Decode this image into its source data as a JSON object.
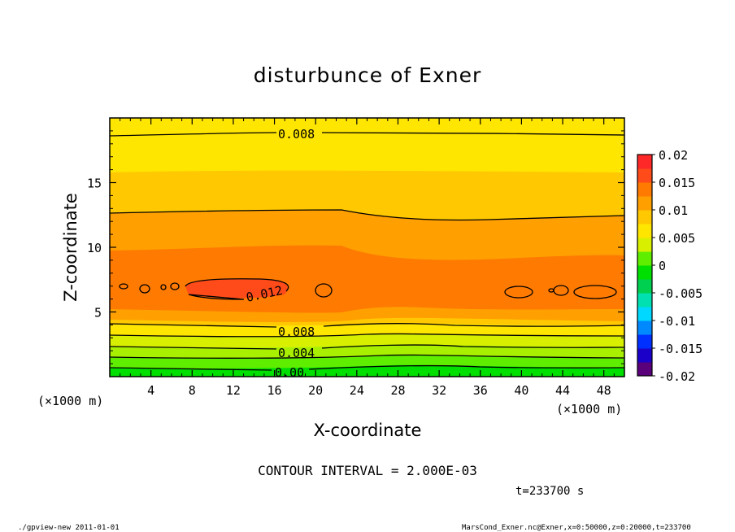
{
  "chart_data": {
    "type": "contour",
    "title": "disturbunce of Exner",
    "xlabel": "X-coordinate",
    "ylabel": "Z-coordinate",
    "x_unit": "(×1000 m)",
    "z_unit": "(×1000 m)",
    "xlim": [
      0,
      50
    ],
    "ylim": [
      0,
      20
    ],
    "x_ticks": [
      4,
      8,
      12,
      16,
      20,
      24,
      28,
      32,
      36,
      40,
      44,
      48
    ],
    "y_ticks": [
      5,
      10,
      15
    ],
    "colorbar": {
      "ticks": [
        "0.02",
        "0.015",
        "0.01",
        "0.005",
        "0",
        "-0.005",
        "-0.01",
        "-0.015",
        "-0.02"
      ],
      "range": [
        -0.02,
        0.02
      ],
      "bands": [
        "#5a007a",
        "#1a00c8",
        "#0030ff",
        "#0088ff",
        "#00d8ff",
        "#00e0b0",
        "#00d050",
        "#00e000",
        "#60ee00",
        "#d8f000",
        "#ffe600",
        "#ffc800",
        "#ffa000",
        "#ff7a00",
        "#ff4a1a",
        "#ff2828"
      ]
    },
    "contour_labels": [
      "0.008",
      "0.012",
      "0.008",
      "0.004",
      "0.00"
    ],
    "contour_interval_text": "CONTOUR INTERVAL = 2.000E-03",
    "time_text": "t=233700 s"
  },
  "footer": {
    "left": "./gpview-new   2011-01-01",
    "right": "MarsCond_Exner.nc@Exner,x=0:50000,z=0:20000,t=233700"
  }
}
